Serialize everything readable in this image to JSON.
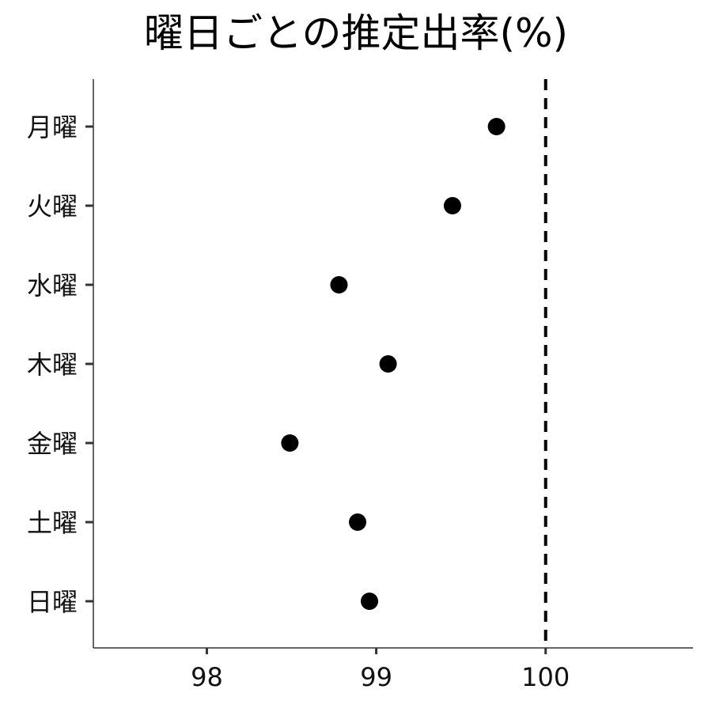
{
  "chart_data": {
    "type": "scatter",
    "title": "曜日ごとの推定出率(%)",
    "xlabel": "",
    "ylabel": "",
    "categories": [
      "月曜",
      "火曜",
      "水曜",
      "木曜",
      "金曜",
      "土曜",
      "日曜"
    ],
    "values": [
      99.71,
      99.45,
      98.78,
      99.07,
      98.49,
      98.89,
      98.96
    ],
    "xlim": [
      97.33,
      100.87
    ],
    "xticks": [
      98,
      99,
      100
    ],
    "reference_line": {
      "x": 100,
      "style": "dashed"
    },
    "grid": false,
    "legend": "none",
    "point_color": "#000000"
  }
}
